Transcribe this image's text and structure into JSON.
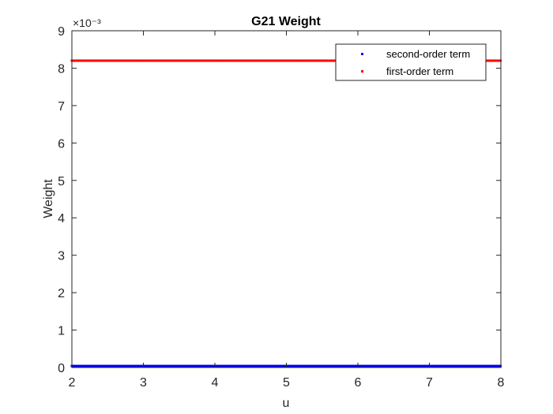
{
  "chart_data": {
    "type": "scatter",
    "title": "G21 Weight",
    "xlabel": "u",
    "ylabel": "Weight",
    "xlim": [
      2,
      8
    ],
    "ylim": [
      0,
      0.009
    ],
    "x_ticks": [
      2,
      3,
      4,
      5,
      6,
      7,
      8
    ],
    "y_ticks": [
      0,
      1,
      2,
      3,
      4,
      5,
      6,
      7,
      8,
      9
    ],
    "y_scale_exponent": "×10⁻³",
    "grid": false,
    "legend_position": "top-right",
    "series": [
      {
        "name": "second-order term",
        "color": "#0000ff",
        "marker": "point",
        "x_range": [
          2,
          8
        ],
        "value": 4e-05
      },
      {
        "name": "first-order term",
        "color": "#ff0000",
        "marker": "point",
        "x_range": [
          2,
          8
        ],
        "value": 0.0082
      }
    ]
  }
}
